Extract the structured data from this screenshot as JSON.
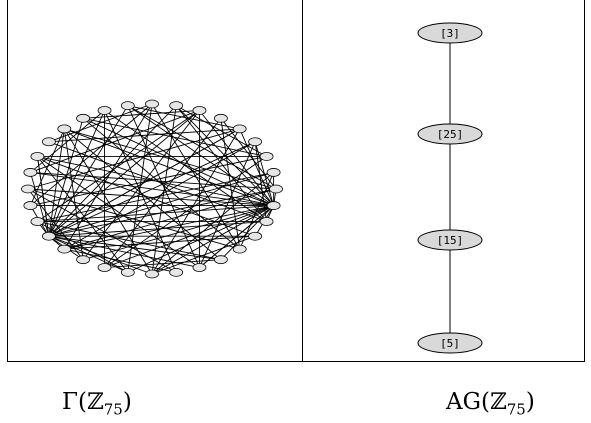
{
  "left_panel": {
    "caption": {
      "prefix": "Γ(",
      "ring": "ℤ",
      "subscript": "75",
      "suffix": ")"
    },
    "graph": {
      "vertex_count": 32,
      "edge_style": "dense-chords"
    }
  },
  "right_panel": {
    "caption": {
      "prefix": "AG(",
      "ring": "ℤ",
      "subscript": "75",
      "suffix": ")"
    },
    "nodes": [
      {
        "label": "[3]"
      },
      {
        "label": "[25]"
      },
      {
        "label": "[15]"
      },
      {
        "label": "[5]"
      }
    ]
  },
  "colors": {
    "node_fill": "#d9d9d9",
    "line": "#000000",
    "background": "#ffffff"
  }
}
